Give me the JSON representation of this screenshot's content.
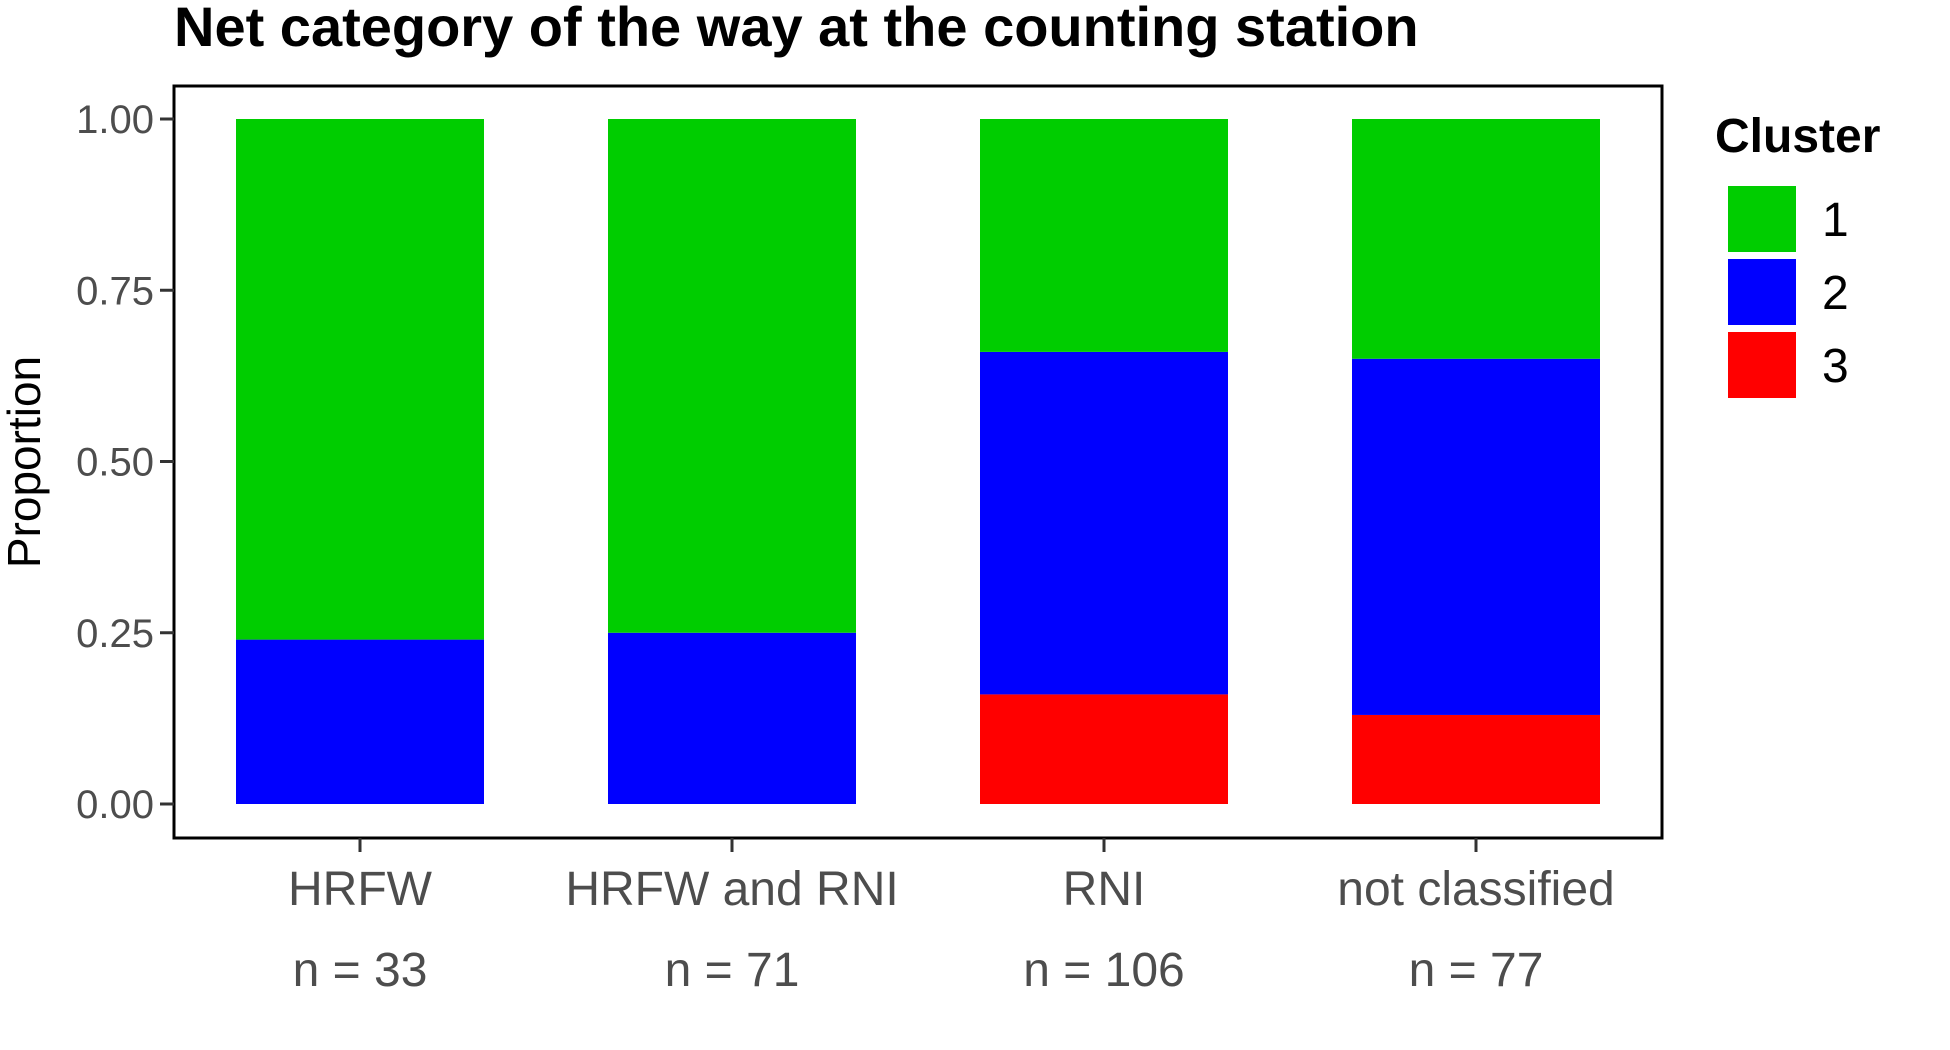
{
  "chart_data": {
    "type": "bar",
    "stacked": true,
    "title": "Net category of the way at the counting station",
    "xlabel": "",
    "ylabel": "Proportion",
    "ylim": [
      0,
      1
    ],
    "yticks": [
      "0.00",
      "0.25",
      "0.50",
      "0.75",
      "1.00"
    ],
    "ytick_values": [
      0,
      0.25,
      0.5,
      0.75,
      1
    ],
    "categories": [
      "HRFW",
      "HRFW and RNI",
      "RNI",
      "not classified"
    ],
    "category_counts": [
      "n = 33",
      "n = 71",
      "n = 106",
      "n = 77"
    ],
    "series": [
      {
        "name": "3",
        "color": "#ff0000",
        "values": [
          0.0,
          0.0,
          0.16,
          0.13
        ]
      },
      {
        "name": "2",
        "color": "#0000ff",
        "values": [
          0.24,
          0.25,
          0.5,
          0.52
        ]
      },
      {
        "name": "1",
        "color": "#00cd00",
        "values": [
          0.76,
          0.75,
          0.34,
          0.35
        ]
      }
    ],
    "legend": {
      "title": "Cluster",
      "placement": "right",
      "entries": [
        {
          "label": "1",
          "color": "#00cd00"
        },
        {
          "label": "2",
          "color": "#0000ff"
        },
        {
          "label": "3",
          "color": "#ff0000"
        }
      ]
    },
    "grid": false
  }
}
